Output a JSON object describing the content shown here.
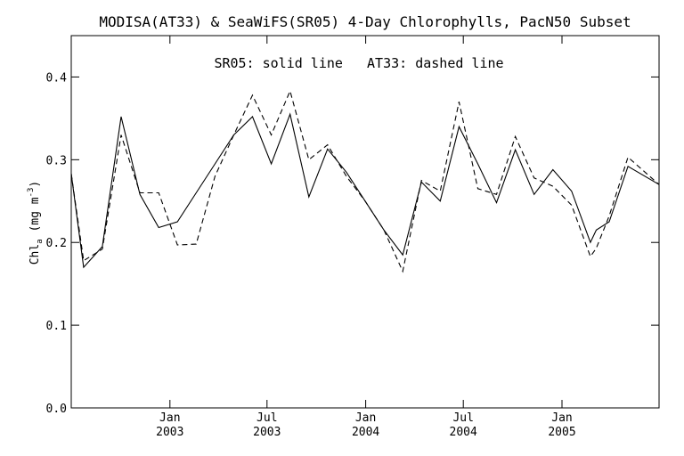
{
  "chart_data": {
    "type": "line",
    "title": "MODISA(AT33) & SeaWiFS(SR05) 4-Day Chlorophylls, PacN50 Subset",
    "annotation": "SR05: solid line   AT33: dashed line",
    "ylabel": {
      "base": "Chl",
      "sub": "a",
      "unit_open": " (mg m",
      "sup": "-3",
      "unit_close": ")"
    },
    "ylim": [
      0.0,
      0.45
    ],
    "xlim": [
      "2002-07-01",
      "2005-07-01"
    ],
    "y_ticks": [
      "0.0",
      "0.1",
      "0.2",
      "0.3",
      "0.4"
    ],
    "x_ticks": [
      {
        "date": "2003-01-01",
        "month": "Jan",
        "year": "2003"
      },
      {
        "date": "2003-07-01",
        "month": "Jul",
        "year": "2003"
      },
      {
        "date": "2004-01-01",
        "month": "Jan",
        "year": "2004"
      },
      {
        "date": "2004-07-01",
        "month": "Jul",
        "year": "2004"
      },
      {
        "date": "2005-01-01",
        "month": "Jan",
        "year": "2005"
      }
    ],
    "grid": false,
    "series": [
      {
        "name": "SR05",
        "style": "solid",
        "color": "#000000",
        "points": [
          [
            "2002-07-01",
            0.283
          ],
          [
            "2002-07-24",
            0.17
          ],
          [
            "2002-08-28",
            0.195
          ],
          [
            "2002-10-02",
            0.352
          ],
          [
            "2002-11-06",
            0.258
          ],
          [
            "2002-12-11",
            0.218
          ],
          [
            "2003-01-15",
            0.225
          ],
          [
            "2003-02-19",
            0.26
          ],
          [
            "2003-03-26",
            0.295
          ],
          [
            "2003-04-30",
            0.33
          ],
          [
            "2003-06-04",
            0.352
          ],
          [
            "2003-07-09",
            0.295
          ],
          [
            "2003-08-13",
            0.355
          ],
          [
            "2003-09-17",
            0.255
          ],
          [
            "2003-10-22",
            0.313
          ],
          [
            "2003-11-26",
            0.285
          ],
          [
            "2003-12-31",
            0.25
          ],
          [
            "2004-02-04",
            0.215
          ],
          [
            "2004-03-10",
            0.185
          ],
          [
            "2004-04-14",
            0.273
          ],
          [
            "2004-05-19",
            0.25
          ],
          [
            "2004-06-23",
            0.34
          ],
          [
            "2004-07-28",
            0.295
          ],
          [
            "2004-09-01",
            0.248
          ],
          [
            "2004-10-06",
            0.312
          ],
          [
            "2004-11-10",
            0.258
          ],
          [
            "2004-12-15",
            0.288
          ],
          [
            "2005-01-19",
            0.262
          ],
          [
            "2005-02-23",
            0.2
          ],
          [
            "2005-03-06",
            0.215
          ],
          [
            "2005-03-30",
            0.225
          ],
          [
            "2005-05-04",
            0.292
          ],
          [
            "2005-07-01",
            0.27
          ]
        ]
      },
      {
        "name": "AT33",
        "style": "dashed",
        "color": "#000000",
        "points": [
          [
            "2002-07-01",
            0.283
          ],
          [
            "2002-07-24",
            0.178
          ],
          [
            "2002-08-28",
            0.192
          ],
          [
            "2002-10-02",
            0.33
          ],
          [
            "2002-11-06",
            0.26
          ],
          [
            "2002-12-11",
            0.26
          ],
          [
            "2003-01-15",
            0.197
          ],
          [
            "2003-02-19",
            0.198
          ],
          [
            "2003-03-26",
            0.28
          ],
          [
            "2003-04-30",
            0.33
          ],
          [
            "2003-06-04",
            0.378
          ],
          [
            "2003-07-09",
            0.33
          ],
          [
            "2003-08-13",
            0.383
          ],
          [
            "2003-09-17",
            0.3
          ],
          [
            "2003-10-22",
            0.318
          ],
          [
            "2003-11-26",
            0.28
          ],
          [
            "2003-12-31",
            0.25
          ],
          [
            "2004-02-04",
            0.215
          ],
          [
            "2004-03-10",
            0.165
          ],
          [
            "2004-04-14",
            0.275
          ],
          [
            "2004-05-19",
            0.262
          ],
          [
            "2004-06-23",
            0.37
          ],
          [
            "2004-07-28",
            0.265
          ],
          [
            "2004-09-01",
            0.258
          ],
          [
            "2004-10-06",
            0.328
          ],
          [
            "2004-11-10",
            0.278
          ],
          [
            "2004-12-15",
            0.268
          ],
          [
            "2005-01-19",
            0.245
          ],
          [
            "2005-02-23",
            0.183
          ],
          [
            "2005-03-06",
            0.193
          ],
          [
            "2005-03-30",
            0.232
          ],
          [
            "2005-05-04",
            0.303
          ],
          [
            "2005-07-01",
            0.27
          ]
        ]
      }
    ]
  }
}
